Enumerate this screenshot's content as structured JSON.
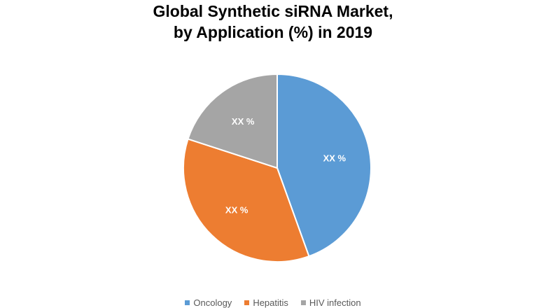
{
  "chart_data": {
    "type": "pie",
    "title_line1": "Global Synthetic siRNA Market,",
    "title_line2": "by Application (%) in 2019",
    "slices": [
      {
        "name": "Oncology",
        "value": 44.5,
        "label": "XX %",
        "color": "#5b9bd5"
      },
      {
        "name": "Hepatitis",
        "value": 35.5,
        "label": "XX %",
        "color": "#ed7d31"
      },
      {
        "name": "HIV infection",
        "value": 20.0,
        "label": "XX %",
        "color": "#a5a5a5"
      }
    ],
    "legend_position": "bottom"
  }
}
